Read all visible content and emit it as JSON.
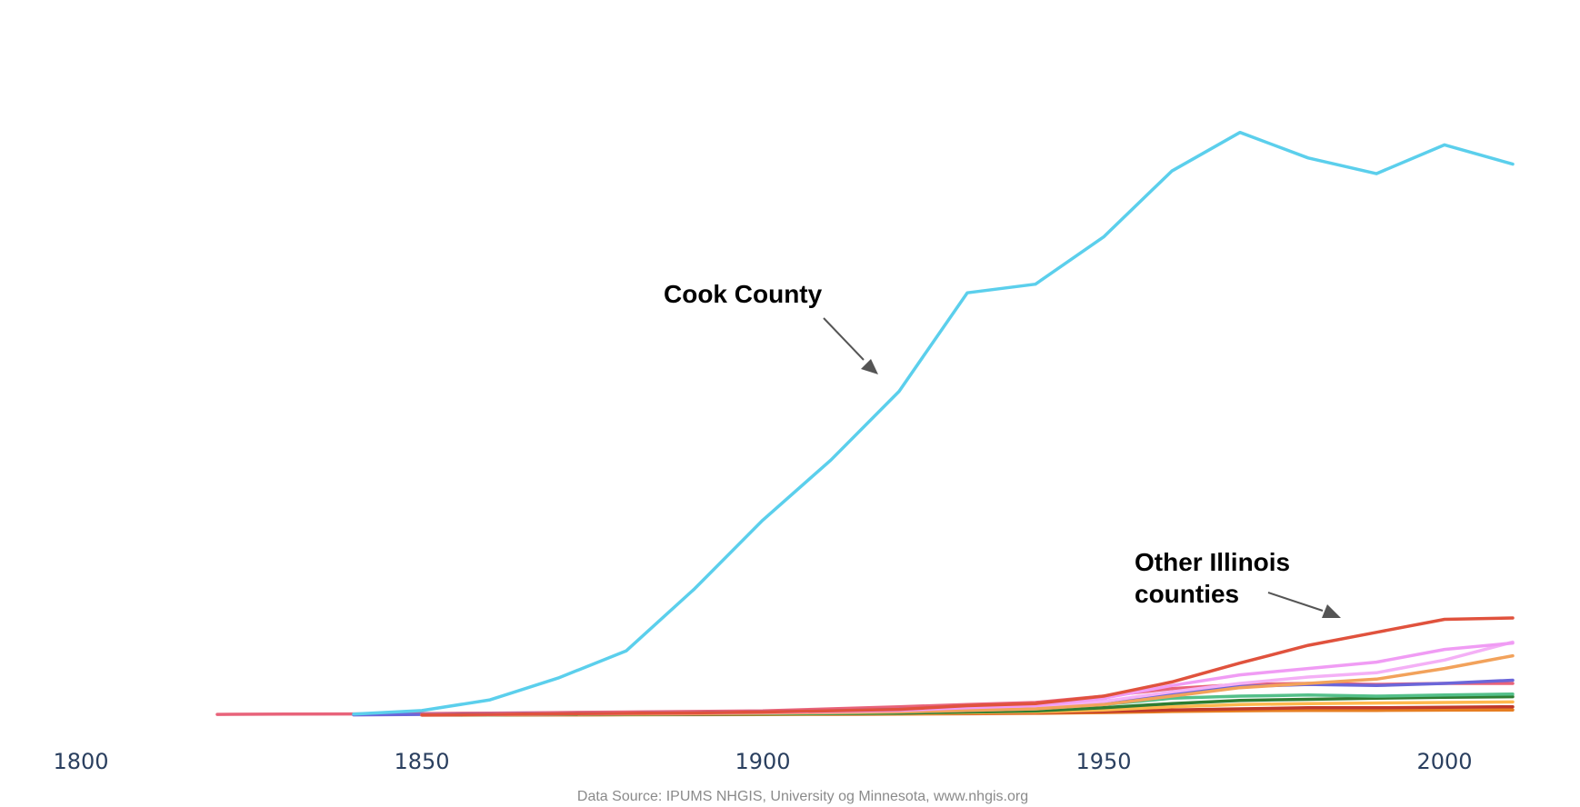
{
  "chart_data": {
    "type": "line",
    "title": "",
    "xlabel": "",
    "ylabel": "",
    "xlim": [
      1800,
      2010
    ],
    "ylim": [
      0,
      5500000
    ],
    "x_ticks": [
      "1800",
      "1850",
      "1900",
      "1950",
      "2000"
    ],
    "grid": false,
    "legend": "none",
    "x": [
      1820,
      1830,
      1840,
      1850,
      1860,
      1870,
      1880,
      1890,
      1900,
      1910,
      1920,
      1930,
      1940,
      1950,
      1960,
      1970,
      1980,
      1990,
      2000,
      2010
    ],
    "series": [
      {
        "color": "#5bcfec",
        "values": [
          null,
          null,
          10201,
          43385,
          144954,
          349966,
          607524,
          1191922,
          1838735,
          2405233,
          3053017,
          3982123,
          4063342,
          4508792,
          5129725,
          5493766,
          5253655,
          5105067,
          5376741,
          5194675
        ]
      },
      {
        "color": "#e0523d",
        "values": [
          null,
          null,
          null,
          3000,
          8000,
          14000,
          18000,
          22000,
          30000,
          42000,
          55000,
          90000,
          110000,
          180000,
          313459,
          491882,
          658835,
          781666,
          904161,
          916924
        ]
      },
      {
        "color": "#f09cf4",
        "values": [
          null,
          null,
          null,
          3000,
          8000,
          14000,
          18000,
          22000,
          28000,
          35000,
          45000,
          70000,
          90000,
          160000,
          280000,
          380000,
          440000,
          500000,
          620000,
          680000
        ]
      },
      {
        "color": "#f2a25b",
        "values": [
          null,
          null,
          null,
          2000,
          5000,
          9000,
          12000,
          15000,
          20000,
          25000,
          32000,
          45000,
          60000,
          100000,
          180000,
          260000,
          300000,
          340000,
          440000,
          560000
        ]
      },
      {
        "color": "#f4b0f6",
        "values": [
          null,
          null,
          null,
          3000,
          7000,
          12000,
          16000,
          20000,
          25000,
          32000,
          40000,
          55000,
          75000,
          130000,
          220000,
          300000,
          360000,
          400000,
          520000,
          690000
        ]
      },
      {
        "color": "#6b66d9",
        "values": [
          null,
          null,
          3000,
          8000,
          12000,
          16000,
          20000,
          25000,
          30000,
          40000,
          55000,
          70000,
          90000,
          130000,
          200000,
          270000,
          290000,
          280000,
          300000,
          330000
        ]
      },
      {
        "color": "#e8637a",
        "values": [
          8000,
          10000,
          12000,
          15000,
          20000,
          25000,
          30000,
          35000,
          40000,
          60000,
          80000,
          100000,
          120000,
          180000,
          250000,
          290000,
          300000,
          290000,
          300000,
          300000
        ]
      },
      {
        "color": "#54c08a",
        "values": [
          null,
          null,
          null,
          2000,
          5000,
          9000,
          12000,
          14000,
          16000,
          20000,
          30000,
          45000,
          60000,
          100000,
          160000,
          180000,
          190000,
          180000,
          190000,
          200000
        ]
      },
      {
        "color": "#2e7d32",
        "values": [
          null,
          null,
          null,
          2000,
          4000,
          6000,
          8000,
          10000,
          12000,
          15000,
          20000,
          30000,
          40000,
          70000,
          110000,
          140000,
          150000,
          160000,
          170000,
          175000
        ]
      },
      {
        "color": "#ffb84d",
        "values": [
          null,
          null,
          null,
          1000,
          3000,
          5000,
          7000,
          9000,
          11000,
          13000,
          16000,
          22000,
          30000,
          50000,
          80000,
          100000,
          110000,
          115000,
          120000,
          125000
        ]
      },
      {
        "color": "#c0392b",
        "values": [
          null,
          null,
          null,
          1000,
          2000,
          4000,
          6000,
          8000,
          10000,
          12000,
          15000,
          20000,
          25000,
          35000,
          50000,
          60000,
          70000,
          70000,
          75000,
          80000
        ]
      },
      {
        "color": "#e67e22",
        "values": [
          null,
          null,
          null,
          1000,
          2000,
          3000,
          4000,
          5000,
          6000,
          8000,
          10000,
          14000,
          18000,
          25000,
          35000,
          42000,
          45000,
          45000,
          48000,
          50000
        ]
      }
    ],
    "annotations": [
      {
        "text": "Cook County",
        "arrow": true
      },
      {
        "text": "Other Illinois",
        "text2": "counties",
        "arrow": true
      }
    ],
    "source": "Data Source: IPUMS NHGIS, University og Minnesota, www.nhgis.org"
  }
}
